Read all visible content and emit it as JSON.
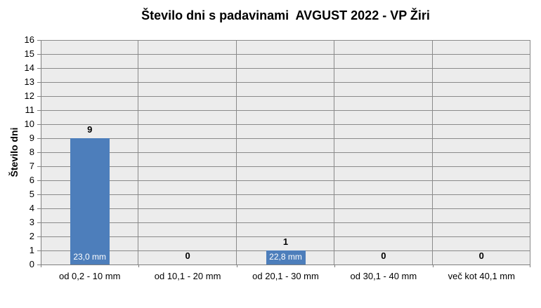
{
  "chart_data": {
    "type": "bar",
    "title": "Število dni s padavinami  AVGUST 2022 - VP Žiri",
    "categories": [
      "od 0,2 - 10 mm",
      "od 10,1 - 20 mm",
      "od 20,1 - 30 mm",
      "od 30,1 - 40 mm",
      "več kot 40,1 mm"
    ],
    "values": [
      9,
      0,
      1,
      0,
      0
    ],
    "value_labels": [
      "9",
      "0",
      "1",
      "0",
      "0"
    ],
    "inside_labels": [
      "23,0 mm",
      "",
      "22,8 mm",
      "",
      ""
    ],
    "xlabel": "",
    "ylabel": "Število dni",
    "ylim": [
      0,
      16
    ],
    "ytick_step": 1,
    "grid": true,
    "legend": false,
    "colors": {
      "bar": "#4D7EBB",
      "plot_background": "#ECECEC",
      "gridline": "#8A8A8A",
      "axis": "#7F7F7F",
      "label_inside": "#FFFFFF",
      "text": "#000000",
      "background": "#FFFFFF"
    }
  }
}
